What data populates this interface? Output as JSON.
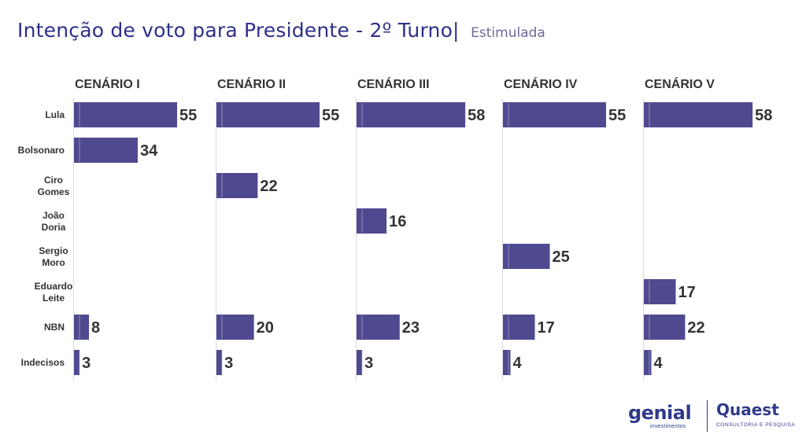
{
  "header": {
    "title": "Intenção de voto para Presidente - 2º Turno|",
    "subtitle": "Estimulada"
  },
  "colors": {
    "bar": "#4f4a8f",
    "title": "#2f2f8a",
    "value_text": "#333333",
    "grid": "#d9d9e3"
  },
  "logos": {
    "genial": "genial",
    "genial_sub": "investimentos",
    "quaest": "Quaest",
    "quaest_sub": "CONSULTORIA E PESQUISA"
  },
  "chart_data": {
    "type": "bar",
    "orientation": "horizontal",
    "categories": [
      "Lula",
      "Bolsonaro",
      "Ciro Gomes",
      "João Doria",
      "Sergio Moro",
      "Eduardo Leite",
      "NBN",
      "Indecisos"
    ],
    "xlim": [
      0,
      58
    ],
    "panels": [
      {
        "name": "CENÁRIO I",
        "values": [
          55,
          34,
          null,
          null,
          null,
          null,
          8,
          3
        ]
      },
      {
        "name": "CENÁRIO II",
        "values": [
          55,
          null,
          22,
          null,
          null,
          null,
          20,
          3
        ]
      },
      {
        "name": "CENÁRIO III",
        "values": [
          58,
          null,
          null,
          16,
          null,
          null,
          23,
          3
        ]
      },
      {
        "name": "CENÁRIO IV",
        "values": [
          55,
          null,
          null,
          null,
          25,
          null,
          17,
          4
        ]
      },
      {
        "name": "CENÁRIO V",
        "values": [
          58,
          null,
          null,
          null,
          null,
          17,
          22,
          4
        ]
      }
    ]
  }
}
